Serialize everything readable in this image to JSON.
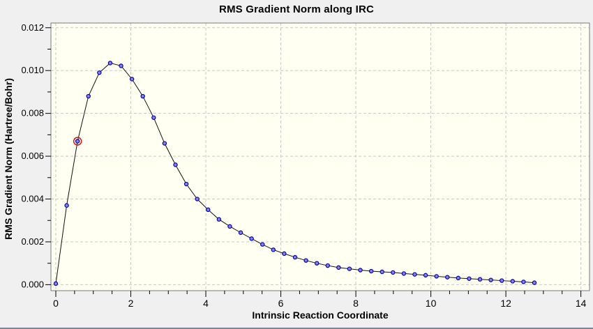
{
  "chart": {
    "title": "RMS Gradient Norm along IRC",
    "xlabel": "Intrinsic Reaction Coordinate",
    "ylabel": "RMS Gradient Norm (Hartree/Bohr)"
  },
  "style": {
    "outer_bg": "#f0f0f0",
    "plot_bg": "#fffff2",
    "grid_color": "#c8c8c8",
    "border_color": "#7a7a7a",
    "tick_color": "#000000",
    "text_color": "#000000",
    "line_color": "#111111",
    "marker_fill": "#8585e0",
    "marker_stroke": "#0000ad",
    "selected_ring_color": "#dd1111",
    "bottom_edge_color": "#7b8595"
  },
  "chart_data": {
    "type": "line",
    "title": "RMS Gradient Norm along IRC",
    "xlabel": "Intrinsic Reaction Coordinate",
    "ylabel": "RMS Gradient Norm (Hartree/Bohr)",
    "xlim": [
      -0.13,
      14.23
    ],
    "ylim": [
      -0.00028,
      0.01222
    ],
    "grid": "dashed lines at major ticks, both axes",
    "legend": "none",
    "x_major_ticks": [
      0,
      2,
      4,
      6,
      8,
      10,
      12,
      14
    ],
    "x_tick_labels": [
      "0",
      "2",
      "4",
      "6",
      "8",
      "10",
      "12",
      "14"
    ],
    "x_minor_tick_interval": 0.5,
    "y_major_ticks": [
      0,
      0.002,
      0.004,
      0.006,
      0.008,
      0.01,
      0.012
    ],
    "y_tick_labels": [
      "0.000",
      "0.002",
      "0.004",
      "0.006",
      "0.008",
      "0.010",
      "0.012"
    ],
    "y_minor_tick_interval": 0.001,
    "series": [
      {
        "name": "RMS gradient norm",
        "marker": "circle",
        "x": [
          0.0,
          0.29,
          0.58,
          0.87,
          1.16,
          1.45,
          1.74,
          2.03,
          2.32,
          2.61,
          2.9,
          3.19,
          3.48,
          3.77,
          4.06,
          4.35,
          4.64,
          4.93,
          5.22,
          5.51,
          5.8,
          6.09,
          6.38,
          6.67,
          6.96,
          7.25,
          7.54,
          7.83,
          8.12,
          8.41,
          8.7,
          8.99,
          9.28,
          9.57,
          9.86,
          10.15,
          10.44,
          10.73,
          11.02,
          11.31,
          11.6,
          11.89,
          12.18,
          12.47,
          12.76
        ],
        "y": [
          5e-05,
          0.0037,
          0.0067,
          0.0088,
          0.0099,
          0.01035,
          0.01022,
          0.0096,
          0.0088,
          0.0078,
          0.0066,
          0.0056,
          0.0047,
          0.004,
          0.0035,
          0.00305,
          0.00272,
          0.00243,
          0.00215,
          0.00188,
          0.00163,
          0.00145,
          0.00128,
          0.00113,
          0.001,
          0.00089,
          0.0008,
          0.00074,
          0.00068,
          0.00063,
          0.0006,
          0.00057,
          0.00052,
          0.00048,
          0.00044,
          0.00039,
          0.00035,
          0.00031,
          0.00028,
          0.00025,
          0.00022,
          0.00019,
          0.00016,
          0.00013,
          9e-05
        ]
      }
    ],
    "selected_point": {
      "index": 2,
      "x": 0.58,
      "y": 0.0067
    }
  }
}
